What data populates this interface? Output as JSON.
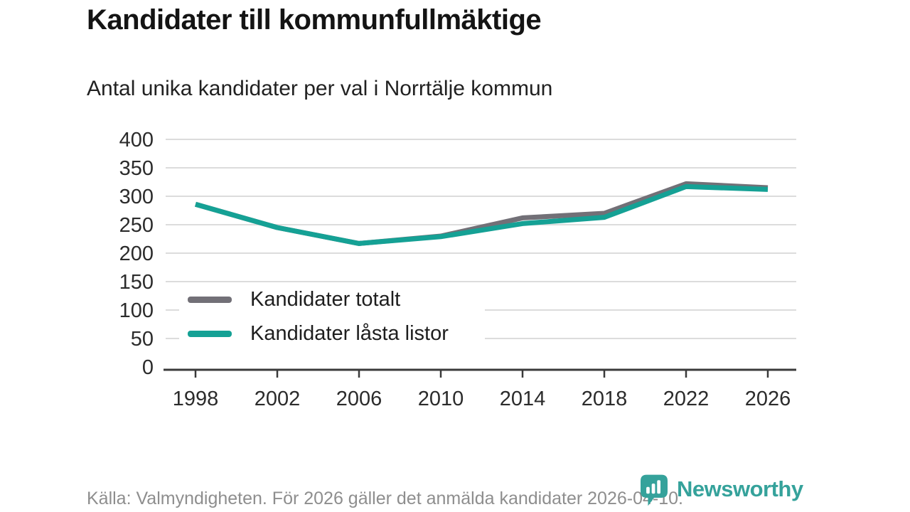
{
  "header": {
    "title": "Kandidater till kommunfullmäktige",
    "subtitle": "Antal unika kandidater per val i Norrtälje kommun"
  },
  "chart_data": {
    "type": "line",
    "x": [
      1998,
      2002,
      2006,
      2010,
      2014,
      2018,
      2022,
      2026
    ],
    "series": [
      {
        "name": "Kandidater totalt",
        "color": "#727077",
        "values": [
          286,
          245,
          217,
          230,
          262,
          270,
          322,
          315
        ]
      },
      {
        "name": "Kandidater låsta listor",
        "color": "#15a195",
        "values": [
          286,
          245,
          217,
          229,
          252,
          263,
          317,
          312
        ]
      }
    ],
    "ylim": [
      0,
      400
    ],
    "yticks": [
      0,
      50,
      100,
      150,
      200,
      250,
      300,
      350,
      400
    ],
    "grid": "horizontal",
    "gridline_color": "#dcdcdc",
    "axis_color": "#3a3a3a",
    "legend_position": "inside-left-middle",
    "line_width": 7
  },
  "footer": {
    "source": "Källa: Valmyndigheten. För 2026 gäller det anmälda kandidater 2026-04-10."
  },
  "logo": {
    "text": "Newsworthy",
    "color": "#35a29b",
    "icon": "newsworthy-pin-bar-chart-icon"
  }
}
